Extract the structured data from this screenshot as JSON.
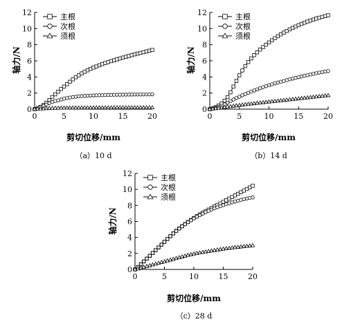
{
  "chart_data": [
    {
      "type": "scatter",
      "caption": "（a）10 d",
      "xlabel": "剪切位移/mm",
      "ylabel": "轴力/N",
      "xlim": [
        0,
        20
      ],
      "ylim": [
        0,
        12
      ],
      "xticks": [
        "0",
        "5",
        "10",
        "15",
        "20"
      ],
      "yticks": [
        "0",
        "2",
        "4",
        "6",
        "8",
        "10",
        "12"
      ],
      "legend_position": "top-left",
      "x": [
        0,
        0.5,
        1,
        1.5,
        2,
        2.5,
        3,
        3.5,
        4,
        4.5,
        5,
        5.5,
        6,
        6.5,
        7,
        7.5,
        8,
        8.5,
        9,
        9.5,
        10,
        10.5,
        11,
        11.5,
        12,
        12.5,
        13,
        13.5,
        14,
        14.5,
        15,
        15.5,
        16,
        16.5,
        17,
        17.5,
        18,
        18.5,
        19,
        19.5,
        20
      ],
      "series": [
        {
          "name": "主根",
          "marker": "square",
          "values": [
            0,
            0.11,
            0.28,
            0.5,
            0.8,
            1.14,
            1.5,
            1.84,
            2.17,
            2.5,
            2.8,
            3.1,
            3.4,
            3.7,
            3.96,
            4.2,
            4.44,
            4.64,
            4.82,
            5,
            5.16,
            5.3,
            5.45,
            5.6,
            5.72,
            5.84,
            5.96,
            6.07,
            6.18,
            6.29,
            6.4,
            6.5,
            6.6,
            6.7,
            6.8,
            6.89,
            6.98,
            7.07,
            7.16,
            7.25,
            7.35
          ]
        },
        {
          "name": "次根",
          "marker": "circle",
          "values": [
            0,
            0.12,
            0.26,
            0.42,
            0.58,
            0.74,
            0.88,
            1,
            1.1,
            1.2,
            1.3,
            1.38,
            1.44,
            1.5,
            1.55,
            1.59,
            1.62,
            1.65,
            1.67,
            1.69,
            1.71,
            1.72,
            1.73,
            1.74,
            1.75,
            1.76,
            1.77,
            1.78,
            1.79,
            1.79,
            1.8,
            1.8,
            1.81,
            1.81,
            1.82,
            1.82,
            1.82,
            1.83,
            1.83,
            1.83,
            1.84
          ]
        },
        {
          "name": "须根",
          "marker": "triangle",
          "values": [
            0,
            0.03,
            0.06,
            0.08,
            0.1,
            0.12,
            0.13,
            0.14,
            0.15,
            0.16,
            0.16,
            0.17,
            0.17,
            0.18,
            0.18,
            0.18,
            0.19,
            0.19,
            0.19,
            0.19,
            0.2,
            0.2,
            0.2,
            0.2,
            0.2,
            0.2,
            0.2,
            0.21,
            0.21,
            0.21,
            0.21,
            0.21,
            0.21,
            0.21,
            0.21,
            0.21,
            0.21,
            0.21,
            0.21,
            0.21,
            0.21
          ]
        }
      ]
    },
    {
      "type": "scatter",
      "caption": "（b）14 d",
      "xlabel": "剪切位移/mm",
      "ylabel": "轴力/N",
      "xlim": [
        0,
        20
      ],
      "ylim": [
        0,
        12
      ],
      "xticks": [
        "0",
        "5",
        "10",
        "15",
        "20"
      ],
      "yticks": [
        "0",
        "2",
        "4",
        "6",
        "8",
        "10",
        "12"
      ],
      "legend_position": "top-left",
      "x": [
        0,
        0.5,
        1,
        1.5,
        2,
        2.5,
        3,
        3.5,
        4,
        4.5,
        5,
        5.5,
        6,
        6.5,
        7,
        7.5,
        8,
        8.5,
        9,
        9.5,
        10,
        10.5,
        11,
        11.5,
        12,
        12.5,
        13,
        13.5,
        14,
        14.5,
        15,
        15.5,
        16,
        16.5,
        17,
        17.5,
        18,
        18.5,
        19,
        19.5,
        20
      ],
      "series": [
        {
          "name": "主根",
          "marker": "square",
          "values": [
            0,
            0.1,
            0.25,
            0.45,
            0.7,
            1.05,
            1.5,
            2.1,
            2.8,
            3.5,
            4.2,
            4.8,
            5.35,
            5.85,
            6.3,
            6.7,
            7.05,
            7.4,
            7.7,
            8,
            8.28,
            8.55,
            8.8,
            9.05,
            9.28,
            9.5,
            9.7,
            9.9,
            10.08,
            10.25,
            10.42,
            10.58,
            10.73,
            10.87,
            11,
            11.12,
            11.24,
            11.35,
            11.45,
            11.55,
            11.65
          ]
        },
        {
          "name": "次根",
          "marker": "circle",
          "values": [
            0,
            0.07,
            0.16,
            0.28,
            0.42,
            0.6,
            0.8,
            1,
            1.2,
            1.38,
            1.55,
            1.72,
            1.88,
            2.03,
            2.18,
            2.32,
            2.46,
            2.6,
            2.73,
            2.85,
            2.97,
            3.08,
            3.19,
            3.3,
            3.4,
            3.5,
            3.6,
            3.7,
            3.79,
            3.88,
            3.97,
            4.06,
            4.14,
            4.22,
            4.3,
            4.38,
            4.46,
            4.54,
            4.6,
            4.66,
            4.72
          ]
        },
        {
          "name": "须根",
          "marker": "triangle",
          "values": [
            0,
            0.05,
            0.1,
            0.15,
            0.2,
            0.25,
            0.3,
            0.35,
            0.4,
            0.45,
            0.5,
            0.55,
            0.6,
            0.64,
            0.68,
            0.72,
            0.76,
            0.8,
            0.84,
            0.88,
            0.92,
            0.96,
            1,
            1.04,
            1.08,
            1.12,
            1.16,
            1.2,
            1.24,
            1.28,
            1.32,
            1.36,
            1.4,
            1.44,
            1.48,
            1.52,
            1.56,
            1.6,
            1.64,
            1.68,
            1.72
          ]
        }
      ]
    },
    {
      "type": "scatter",
      "caption": "（c）28 d",
      "xlabel": "剪切位移/mm",
      "ylabel": "轴力/N",
      "xlim": [
        0,
        20
      ],
      "ylim": [
        0,
        12
      ],
      "xticks": [
        "0",
        "5",
        "10",
        "15",
        "20"
      ],
      "yticks": [
        "0",
        "2",
        "4",
        "6",
        "8",
        "10",
        "12"
      ],
      "legend_position": "top-left",
      "x": [
        0,
        0.5,
        1,
        1.5,
        2,
        2.5,
        3,
        3.5,
        4,
        4.5,
        5,
        5.5,
        6,
        6.5,
        7,
        7.5,
        8,
        8.5,
        9,
        9.5,
        10,
        10.5,
        11,
        11.5,
        12,
        12.5,
        13,
        13.5,
        14,
        14.5,
        15,
        15.5,
        16,
        16.5,
        17,
        17.5,
        18,
        18.5,
        19,
        19.5,
        20
      ],
      "series": [
        {
          "name": "主根",
          "marker": "square",
          "values": [
            0,
            0.3,
            0.65,
            1,
            1.35,
            1.7,
            2.05,
            2.4,
            2.75,
            3.1,
            3.45,
            3.8,
            4.15,
            4.5,
            4.82,
            5.12,
            5.4,
            5.67,
            5.93,
            6.18,
            6.42,
            6.65,
            6.87,
            7.08,
            7.28,
            7.48,
            7.68,
            7.87,
            8.06,
            8.25,
            8.45,
            8.65,
            8.85,
            9.05,
            9.25,
            9.45,
            9.65,
            9.85,
            10.05,
            10.25,
            10.45
          ]
        },
        {
          "name": "次根",
          "marker": "circle",
          "values": [
            0,
            0.3,
            0.65,
            1,
            1.35,
            1.7,
            2.05,
            2.4,
            2.75,
            3.1,
            3.45,
            3.8,
            4.15,
            4.5,
            4.8,
            5.1,
            5.38,
            5.64,
            5.9,
            6.14,
            6.37,
            6.58,
            6.78,
            6.97,
            7.15,
            7.32,
            7.48,
            7.63,
            7.77,
            7.9,
            8.03,
            8.15,
            8.27,
            8.38,
            8.49,
            8.59,
            8.69,
            8.78,
            8.86,
            8.94,
            9
          ]
        },
        {
          "name": "须根",
          "marker": "triangle",
          "values": [
            0,
            0.1,
            0.2,
            0.3,
            0.4,
            0.5,
            0.6,
            0.7,
            0.8,
            0.9,
            1,
            1.1,
            1.2,
            1.3,
            1.4,
            1.5,
            1.6,
            1.7,
            1.8,
            1.88,
            1.96,
            2.03,
            2.1,
            2.16,
            2.22,
            2.28,
            2.34,
            2.4,
            2.46,
            2.52,
            2.57,
            2.62,
            2.67,
            2.72,
            2.76,
            2.8,
            2.84,
            2.88,
            2.92,
            2.96,
            3
          ]
        }
      ]
    }
  ]
}
